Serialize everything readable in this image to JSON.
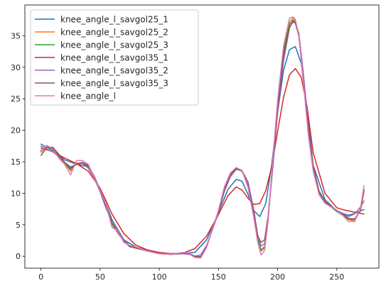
{
  "chart_data": {
    "type": "line",
    "title": "",
    "xlabel": "",
    "ylabel": "",
    "xlim": [
      -13.6,
      285.6
    ],
    "ylim": [
      -1.9,
      39.9
    ],
    "xticks": [
      0,
      50,
      100,
      150,
      200,
      250
    ],
    "xtick_labels": [
      "0",
      "50",
      "100",
      "150",
      "200",
      "250"
    ],
    "yticks": [
      0,
      5,
      10,
      15,
      20,
      25,
      30,
      35
    ],
    "ytick_labels": [
      "0",
      "5",
      "10",
      "15",
      "20",
      "25",
      "30",
      "35"
    ],
    "grid": false,
    "legend_position": "top-left",
    "series": [
      {
        "name": "knee_angle_l_savgol25_1",
        "color": "#1f77b4",
        "x": [
          0,
          10,
          20,
          30,
          40,
          50,
          55,
          60,
          70,
          80,
          90,
          100,
          110,
          120,
          130,
          140,
          150,
          158,
          165,
          170,
          175,
          180,
          185,
          190,
          195,
          200,
          205,
          210,
          215,
          220,
          225,
          230,
          240,
          250,
          255,
          260,
          265,
          270,
          273
        ],
        "y": [
          17.8,
          16.8,
          15.3,
          14.6,
          14.2,
          10.5,
          8.3,
          5.8,
          2.6,
          1.5,
          0.9,
          0.5,
          0.4,
          0.5,
          0.6,
          2.6,
          6.9,
          10.6,
          12.2,
          11.9,
          9.8,
          7.2,
          6.3,
          8.4,
          14.5,
          22.8,
          29.5,
          32.8,
          33.3,
          30.6,
          23.2,
          14.5,
          9.0,
          7.2,
          6.8,
          6.5,
          6.8,
          7.2,
          7.4
        ]
      },
      {
        "name": "knee_angle_l_savgol25_2",
        "color": "#ff7f0e",
        "x": [
          0,
          5,
          10,
          15,
          20,
          25,
          30,
          35,
          40,
          45,
          50,
          55,
          60,
          65,
          70,
          75,
          80,
          90,
          100,
          110,
          120,
          125,
          130,
          135,
          140,
          150,
          155,
          160,
          165,
          170,
          175,
          180,
          183,
          186,
          189,
          192,
          196,
          200,
          205,
          210,
          213,
          215,
          218,
          222,
          226,
          230,
          235,
          240,
          250,
          255,
          260,
          265,
          270,
          273
        ],
        "y": [
          16.5,
          17.4,
          17.2,
          16.0,
          14.8,
          13.5,
          14.8,
          14.8,
          14.5,
          12.5,
          10.5,
          8.0,
          5.0,
          3.8,
          2.5,
          1.6,
          1.4,
          0.9,
          0.4,
          0.3,
          0.4,
          0.4,
          -0.2,
          -0.2,
          1.5,
          7.2,
          10.8,
          13.0,
          14.0,
          13.6,
          11.2,
          6.4,
          2.6,
          0.8,
          1.3,
          6.0,
          15.2,
          24.2,
          32.8,
          37.2,
          37.8,
          37.4,
          35.0,
          27.5,
          19.5,
          14.0,
          10.0,
          8.5,
          7.2,
          6.6,
          5.8,
          5.6,
          7.3,
          10.2
        ]
      },
      {
        "name": "knee_angle_l_savgol25_3",
        "color": "#2ca02c",
        "x": [
          0,
          5,
          10,
          15,
          20,
          25,
          30,
          35,
          40,
          45,
          50,
          55,
          60,
          65,
          70,
          75,
          80,
          90,
          100,
          110,
          120,
          125,
          130,
          135,
          140,
          150,
          155,
          160,
          165,
          170,
          175,
          180,
          183,
          186,
          189,
          192,
          196,
          200,
          205,
          210,
          213,
          215,
          218,
          222,
          226,
          230,
          235,
          240,
          250,
          255,
          260,
          265,
          270,
          273
        ],
        "y": [
          16.8,
          17.3,
          17.0,
          15.9,
          14.6,
          13.8,
          14.6,
          14.7,
          14.3,
          12.6,
          10.4,
          7.8,
          5.2,
          3.7,
          2.4,
          1.6,
          1.3,
          0.9,
          0.4,
          0.3,
          0.5,
          0.4,
          -0.1,
          -0.1,
          1.6,
          7.1,
          10.7,
          12.9,
          13.9,
          13.5,
          11.1,
          6.5,
          2.8,
          1.0,
          1.5,
          6.2,
          15.0,
          24.0,
          32.5,
          36.8,
          37.5,
          37.2,
          34.9,
          27.6,
          19.7,
          14.1,
          10.1,
          8.6,
          7.1,
          6.5,
          5.9,
          5.8,
          7.4,
          10.5
        ]
      },
      {
        "name": "knee_angle_l_savgol35_1",
        "color": "#d62728",
        "x": [
          0,
          10,
          20,
          30,
          40,
          50,
          55,
          60,
          70,
          80,
          90,
          100,
          110,
          120,
          130,
          140,
          150,
          158,
          165,
          170,
          175,
          180,
          185,
          190,
          195,
          200,
          205,
          210,
          215,
          220,
          225,
          230,
          240,
          250,
          255,
          260,
          265,
          270,
          273
        ],
        "y": [
          17.2,
          16.6,
          15.6,
          14.7,
          13.5,
          10.8,
          8.8,
          6.7,
          3.6,
          1.8,
          1.0,
          0.6,
          0.4,
          0.5,
          1.2,
          3.2,
          6.6,
          9.6,
          11.0,
          10.5,
          9.2,
          8.2,
          8.4,
          10.4,
          14.2,
          19.8,
          25.2,
          28.8,
          29.8,
          28.4,
          23.6,
          16.5,
          10.0,
          7.7,
          7.4,
          7.2,
          7.0,
          6.8,
          6.7
        ]
      },
      {
        "name": "knee_angle_l_savgol35_2",
        "color": "#9467bd",
        "x": [
          0,
          5,
          10,
          15,
          20,
          25,
          30,
          35,
          40,
          45,
          50,
          55,
          60,
          65,
          70,
          75,
          80,
          90,
          100,
          110,
          120,
          125,
          130,
          135,
          140,
          150,
          155,
          160,
          165,
          170,
          175,
          180,
          183,
          186,
          189,
          192,
          196,
          200,
          205,
          210,
          213,
          215,
          218,
          222,
          226,
          230,
          235,
          240,
          250,
          255,
          260,
          265,
          270,
          273
        ],
        "y": [
          17.5,
          17.0,
          16.6,
          15.8,
          14.9,
          14.2,
          14.6,
          14.7,
          14.0,
          12.4,
          10.2,
          7.6,
          5.4,
          3.8,
          2.5,
          1.7,
          1.3,
          0.8,
          0.4,
          0.3,
          0.4,
          0.3,
          0.0,
          0.2,
          1.7,
          6.9,
          10.3,
          12.6,
          13.8,
          13.6,
          11.8,
          7.2,
          3.5,
          1.6,
          2.0,
          6.0,
          14.2,
          22.8,
          31.0,
          36.2,
          37.3,
          37.2,
          35.4,
          28.6,
          20.4,
          14.4,
          10.4,
          8.7,
          7.3,
          6.8,
          6.3,
          6.7,
          7.8,
          8.8
        ]
      },
      {
        "name": "knee_angle_l_savgol35_3",
        "color": "#8c564b",
        "x": [
          0,
          5,
          10,
          15,
          20,
          25,
          30,
          35,
          40,
          45,
          50,
          55,
          60,
          65,
          70,
          75,
          80,
          90,
          100,
          110,
          120,
          125,
          130,
          135,
          140,
          150,
          155,
          160,
          165,
          170,
          175,
          180,
          183,
          186,
          189,
          192,
          196,
          200,
          205,
          210,
          213,
          215,
          218,
          222,
          226,
          230,
          235,
          240,
          250,
          255,
          260,
          265,
          270,
          273
        ],
        "y": [
          16.0,
          17.3,
          17.3,
          16.2,
          14.9,
          14.0,
          14.6,
          14.9,
          14.4,
          12.7,
          10.5,
          7.9,
          5.3,
          3.7,
          2.4,
          1.5,
          1.3,
          0.9,
          0.4,
          0.3,
          0.5,
          0.5,
          0.0,
          -0.1,
          1.5,
          7.0,
          10.6,
          12.9,
          13.9,
          13.5,
          11.3,
          6.8,
          3.3,
          2.2,
          2.6,
          6.4,
          14.8,
          23.6,
          31.8,
          36.4,
          37.2,
          37.0,
          35.0,
          27.8,
          19.9,
          14.3,
          10.3,
          8.7,
          7.2,
          6.7,
          6.0,
          5.9,
          7.2,
          10.6
        ]
      },
      {
        "name": "knee_angle_l",
        "color": "#e377c2",
        "x": [
          0,
          5,
          10,
          15,
          20,
          25,
          30,
          35,
          40,
          45,
          50,
          55,
          60,
          65,
          70,
          75,
          80,
          90,
          100,
          110,
          120,
          125,
          130,
          135,
          140,
          150,
          155,
          160,
          165,
          170,
          175,
          180,
          183,
          186,
          189,
          192,
          196,
          200,
          205,
          210,
          213,
          215,
          218,
          222,
          226,
          230,
          235,
          240,
          250,
          255,
          260,
          265,
          270,
          273
        ],
        "y": [
          16.6,
          17.6,
          17.0,
          15.6,
          14.6,
          12.9,
          15.2,
          15.2,
          14.6,
          12.4,
          10.5,
          8.2,
          4.6,
          4.0,
          2.2,
          1.7,
          1.5,
          0.8,
          0.4,
          0.3,
          0.6,
          0.5,
          -0.2,
          -0.3,
          1.4,
          7.3,
          11.0,
          13.2,
          14.1,
          13.6,
          10.9,
          6.0,
          2.4,
          0.2,
          0.9,
          5.6,
          15.5,
          24.8,
          33.4,
          37.8,
          38.0,
          37.6,
          35.0,
          27.2,
          19.2,
          13.6,
          9.8,
          8.4,
          7.3,
          6.5,
          5.5,
          5.5,
          7.6,
          11.2
        ]
      }
    ]
  }
}
